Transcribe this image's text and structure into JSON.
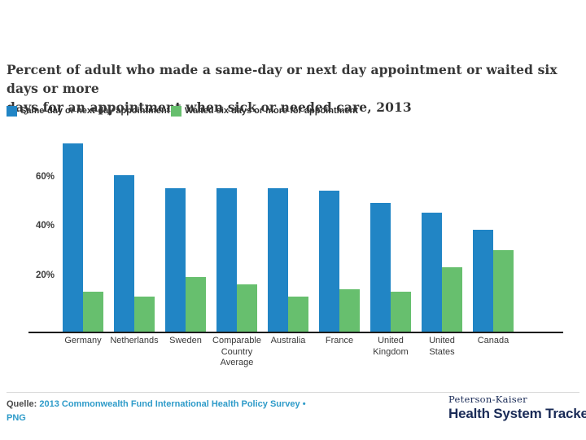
{
  "title": {
    "text": "Percent of adult who made a same-day or next day appointment or waited six days or more\ndays for an appointment when sick or needed care, 2013"
  },
  "legend": {
    "items": [
      {
        "label": "Same-day or next-day appointment",
        "color": "#2185c5"
      },
      {
        "label": "Waited six days or more for appointment",
        "color": "#67bf6e"
      }
    ]
  },
  "chart_data": {
    "type": "bar",
    "title": "Percent of adult who made a same-day or next day appointment or waited six days or more days for an appointment when sick or needed care, 2013",
    "categories": [
      "Germany",
      "Netherlands",
      "Sweden",
      "Comparable Country Average",
      "Australia",
      "France",
      "United Kingdom",
      "United States",
      "Canada"
    ],
    "category_lines": [
      [
        "Germany"
      ],
      [
        "Netherlands"
      ],
      [
        "Sweden"
      ],
      [
        "Comparable",
        "Country",
        "Average"
      ],
      [
        "Australia"
      ],
      [
        "France"
      ],
      [
        "United",
        "Kingdom"
      ],
      [
        "United",
        "States"
      ],
      [
        "Canada"
      ]
    ],
    "series": [
      {
        "name": "Same-day or next-day appointment",
        "color": "#2185c5",
        "values": [
          76,
          63,
          58,
          58,
          58,
          57,
          52,
          48,
          41
        ]
      },
      {
        "name": "Waited six days or more for appointment",
        "color": "#67bf6e",
        "values": [
          16,
          14,
          22,
          19,
          14,
          17,
          16,
          26,
          33
        ]
      }
    ],
    "xlabel": "",
    "ylabel": "Percent",
    "ylim": [
      0,
      80
    ],
    "yticks": [
      20,
      40,
      60
    ],
    "ytick_labels": [
      "20%",
      "40%",
      "60%"
    ],
    "grid": false,
    "legend_position": "top-left"
  },
  "footer": {
    "source_label": "Quelle:",
    "source_line1": "2013 Commonwealth Fund International Health Policy Survey •",
    "source_line2": "PNG"
  },
  "logo": {
    "top": "Peterson-Kaiser",
    "bottom": "Health System Tracker"
  }
}
